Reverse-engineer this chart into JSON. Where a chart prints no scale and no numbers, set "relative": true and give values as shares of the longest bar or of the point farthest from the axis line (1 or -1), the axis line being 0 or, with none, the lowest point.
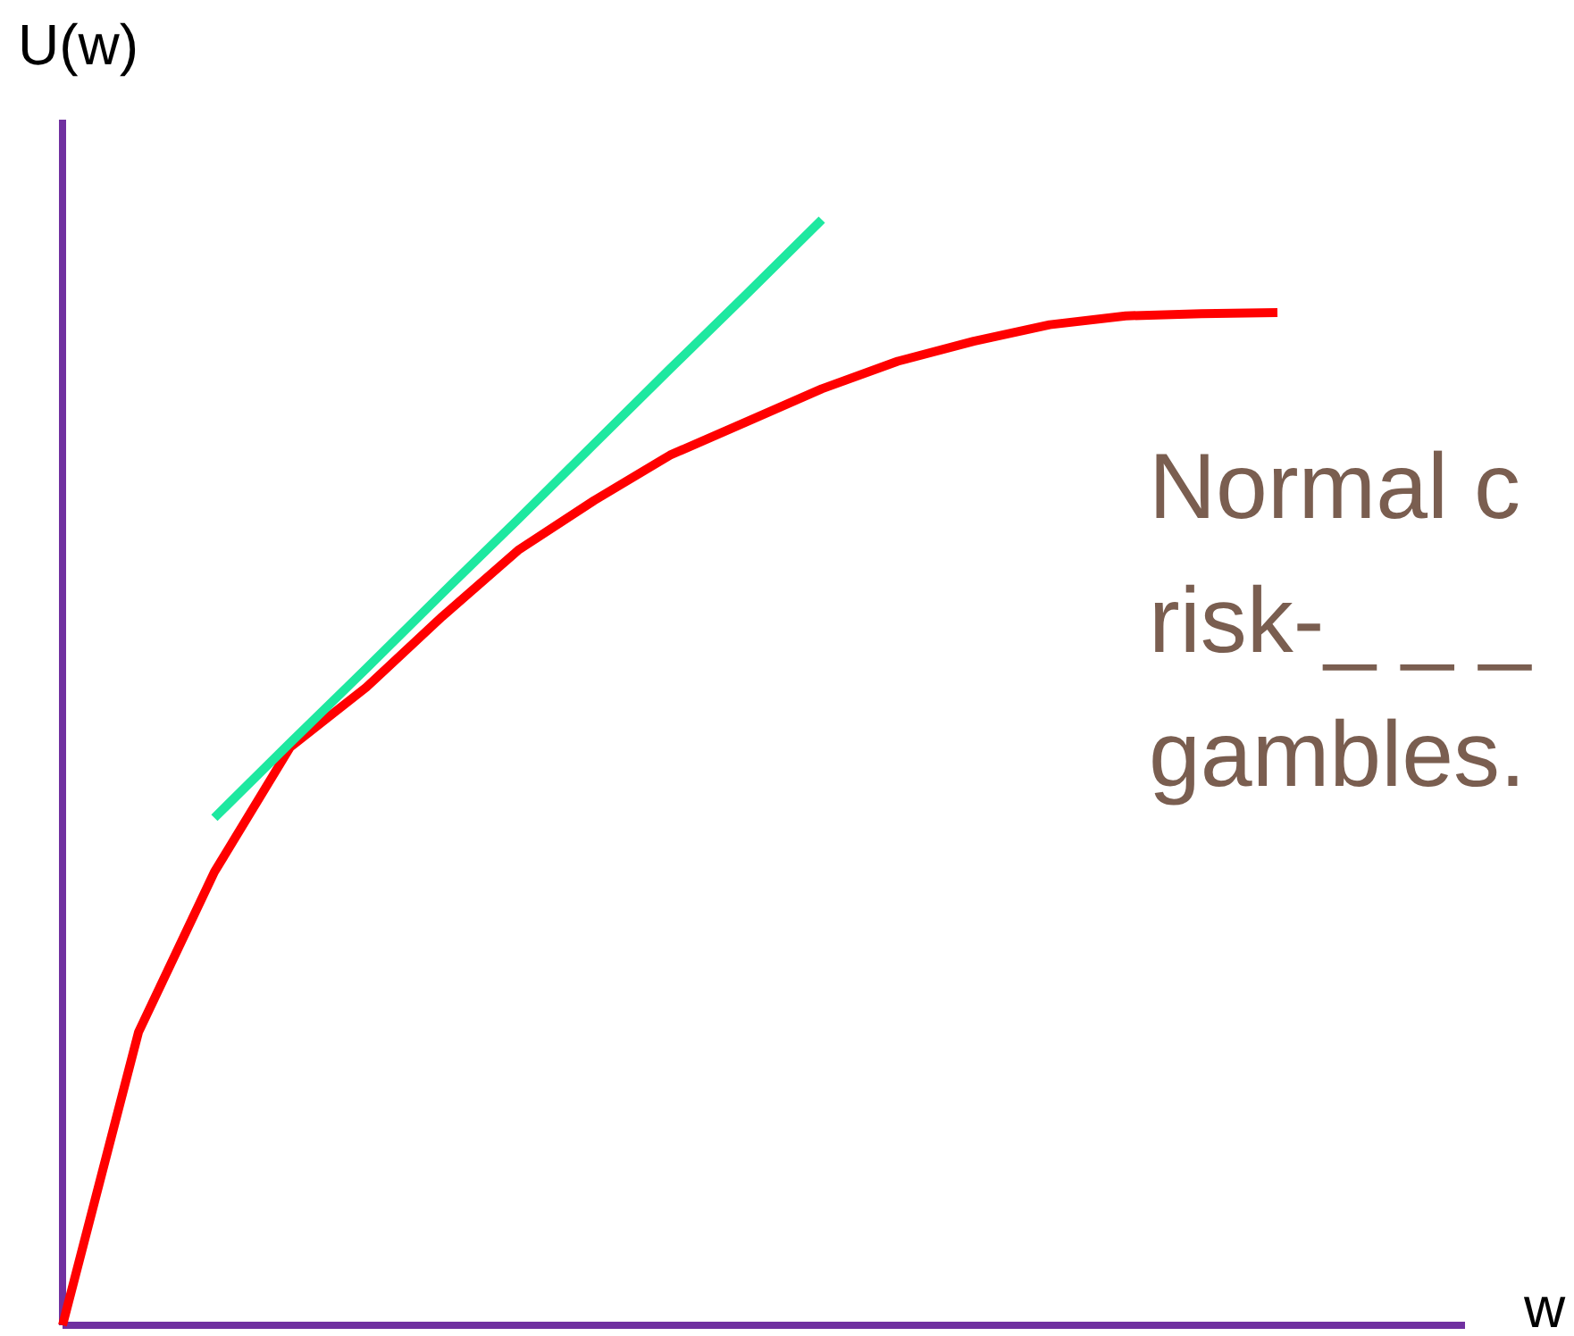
{
  "chart_data": {
    "type": "line",
    "relative": true,
    "ylabel": "U(w)",
    "xlabel": "w",
    "grid": false,
    "legend": false,
    "marker": "none",
    "line_style": "solid",
    "annotations": [
      "Normal c",
      "risk-_ _ _",
      "gambles."
    ],
    "categories": [
      null,
      null,
      null,
      null,
      null,
      null,
      null,
      null,
      null,
      null,
      null,
      null,
      null,
      null,
      null,
      null,
      null
    ],
    "series": [
      {
        "color": "#ff0000",
        "values": [
          0,
          0.265,
          0.41,
          0.523,
          0.577,
          0.641,
          0.701,
          0.746,
          0.787,
          0.817,
          0.847,
          0.872,
          0.89,
          0.905,
          0.913,
          0.915,
          0.916
        ]
      },
      {
        "color": "#1ee8a0",
        "values": [
          null,
          null,
          0.459,
          0.527,
          0.594,
          0.662,
          0.729,
          0.797,
          0.865,
          0.932,
          1,
          null,
          null,
          null,
          null,
          null,
          null
        ]
      }
    ]
  }
}
